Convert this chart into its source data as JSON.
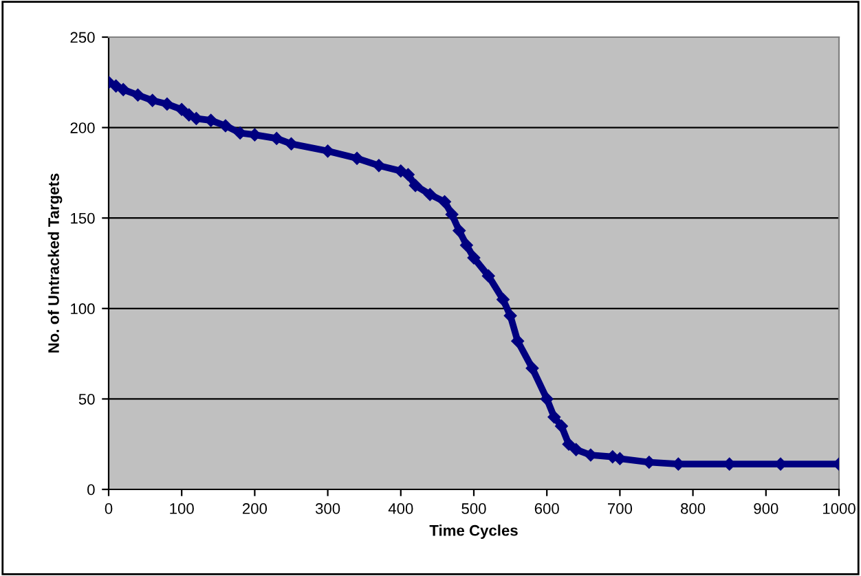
{
  "chart_data": {
    "type": "line",
    "xlabel": "Time Cycles",
    "ylabel": "No. of Untracked Targets",
    "series": [
      {
        "color": "#000080",
        "x": [
          0,
          10,
          20,
          40,
          60,
          80,
          100,
          110,
          120,
          140,
          160,
          180,
          200,
          230,
          250,
          300,
          340,
          370,
          400,
          410,
          420,
          440,
          460,
          470,
          480,
          490,
          500,
          520,
          540,
          550,
          560,
          580,
          600,
          610,
          620,
          630,
          640,
          660,
          690,
          700,
          740,
          780,
          850,
          920,
          1000
        ],
        "values": [
          225,
          223,
          221,
          218,
          215,
          213,
          210,
          207,
          205,
          204,
          201,
          197,
          196,
          194,
          191,
          187,
          183,
          179,
          176,
          174,
          168,
          163,
          159,
          152,
          143,
          135,
          128,
          118,
          105,
          96,
          82,
          67,
          50,
          40,
          35,
          25,
          22,
          19,
          18,
          17,
          15,
          14,
          14,
          14,
          14
        ]
      }
    ],
    "xlim": [
      0,
      1000
    ],
    "xticks": [
      0,
      100,
      200,
      300,
      400,
      500,
      600,
      700,
      800,
      900,
      1000
    ],
    "ylim": [
      0,
      250
    ],
    "yticks": [
      0,
      50,
      100,
      150,
      200,
      250
    ],
    "grid": "y",
    "marker": "diamond",
    "line_style": "solid"
  }
}
